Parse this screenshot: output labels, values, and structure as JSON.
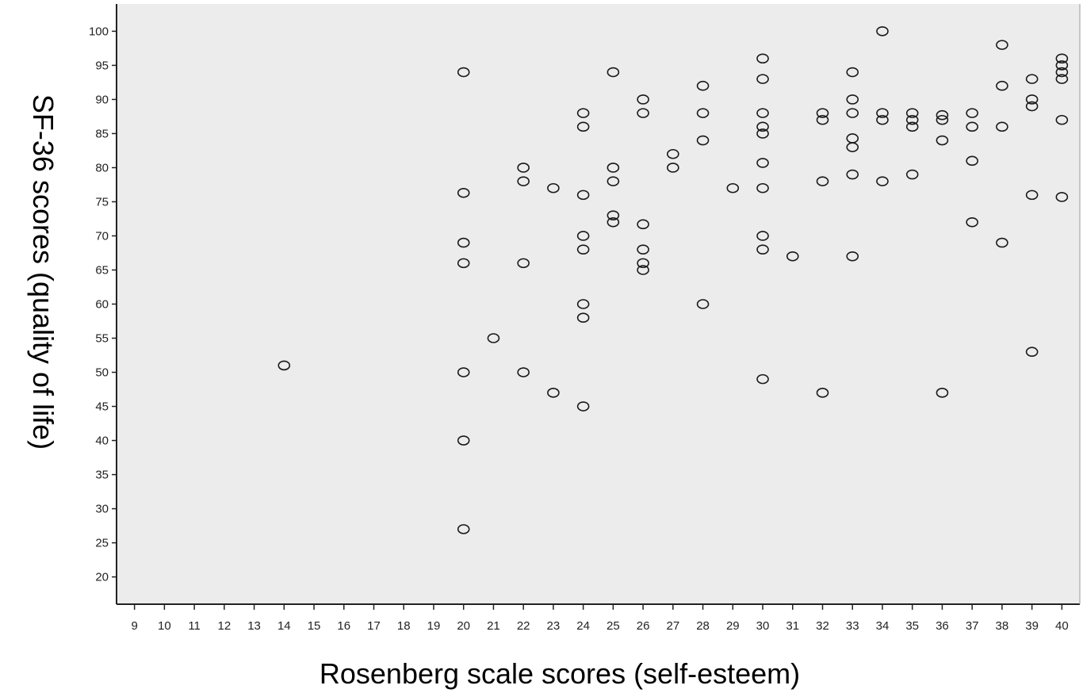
{
  "chart_data": {
    "type": "scatter",
    "title": "",
    "xlabel": "Rosenberg scale scores (self-esteem)",
    "ylabel": "SF-36 scores (quality of life)",
    "xlim": [
      8.4,
      40.6
    ],
    "ylim": [
      16,
      104
    ],
    "x_ticks": [
      9,
      10,
      11,
      12,
      13,
      14,
      15,
      16,
      17,
      18,
      19,
      20,
      21,
      22,
      23,
      24,
      25,
      26,
      27,
      28,
      29,
      30,
      31,
      32,
      33,
      34,
      35,
      36,
      37,
      38,
      39,
      40
    ],
    "y_ticks": [
      20,
      25,
      30,
      35,
      40,
      45,
      50,
      55,
      60,
      65,
      70,
      75,
      80,
      85,
      90,
      95,
      100
    ],
    "grid": false,
    "legend": "none",
    "colors": {
      "plot_background": "#ececec",
      "marker_stroke": "#1a1a1a",
      "axis": "#222222"
    },
    "series": [
      {
        "points": [
          [
            14,
            51
          ],
          [
            20,
            94
          ],
          [
            20,
            76.3
          ],
          [
            20,
            69
          ],
          [
            20,
            66
          ],
          [
            20,
            50
          ],
          [
            20,
            40
          ],
          [
            20,
            27
          ],
          [
            21,
            55
          ],
          [
            22,
            80
          ],
          [
            22,
            78
          ],
          [
            22,
            66
          ],
          [
            22,
            50
          ],
          [
            23,
            77
          ],
          [
            23,
            47
          ],
          [
            24,
            88
          ],
          [
            24,
            86
          ],
          [
            24,
            76
          ],
          [
            24,
            70
          ],
          [
            24,
            68
          ],
          [
            24,
            60
          ],
          [
            24,
            58
          ],
          [
            24,
            45
          ],
          [
            25,
            94
          ],
          [
            25,
            80
          ],
          [
            25,
            78
          ],
          [
            25,
            73
          ],
          [
            25,
            72
          ],
          [
            26,
            90
          ],
          [
            26,
            88
          ],
          [
            26,
            71.7
          ],
          [
            26,
            68
          ],
          [
            26,
            66
          ],
          [
            26,
            65
          ],
          [
            27,
            82
          ],
          [
            27,
            80
          ],
          [
            28,
            92
          ],
          [
            28,
            88
          ],
          [
            28,
            84
          ],
          [
            28,
            60
          ],
          [
            29,
            77
          ],
          [
            30,
            96
          ],
          [
            30,
            93
          ],
          [
            30,
            88
          ],
          [
            30,
            86
          ],
          [
            30,
            85
          ],
          [
            30,
            80.7
          ],
          [
            30,
            77
          ],
          [
            30,
            70
          ],
          [
            30,
            68
          ],
          [
            30,
            49
          ],
          [
            31,
            67
          ],
          [
            32,
            88
          ],
          [
            32,
            87
          ],
          [
            32,
            78
          ],
          [
            32,
            47
          ],
          [
            33,
            94
          ],
          [
            33,
            90
          ],
          [
            33,
            88
          ],
          [
            33,
            84.3
          ],
          [
            33,
            83
          ],
          [
            33,
            79
          ],
          [
            33,
            67
          ],
          [
            34,
            100
          ],
          [
            34,
            88
          ],
          [
            34,
            87
          ],
          [
            34,
            78
          ],
          [
            35,
            88
          ],
          [
            35,
            87
          ],
          [
            35,
            86
          ],
          [
            35,
            79
          ],
          [
            36,
            87.7
          ],
          [
            36,
            87
          ],
          [
            36,
            84
          ],
          [
            36,
            47
          ],
          [
            37,
            88
          ],
          [
            37,
            86
          ],
          [
            37,
            81
          ],
          [
            37,
            72
          ],
          [
            38,
            98
          ],
          [
            38,
            92
          ],
          [
            38,
            86
          ],
          [
            38,
            69
          ],
          [
            39,
            93
          ],
          [
            39,
            90
          ],
          [
            39,
            89
          ],
          [
            39,
            76
          ],
          [
            39,
            53
          ],
          [
            40,
            96
          ],
          [
            40,
            95
          ],
          [
            40,
            94
          ],
          [
            40,
            93
          ],
          [
            40,
            87
          ],
          [
            40,
            75.7
          ]
        ]
      }
    ]
  }
}
